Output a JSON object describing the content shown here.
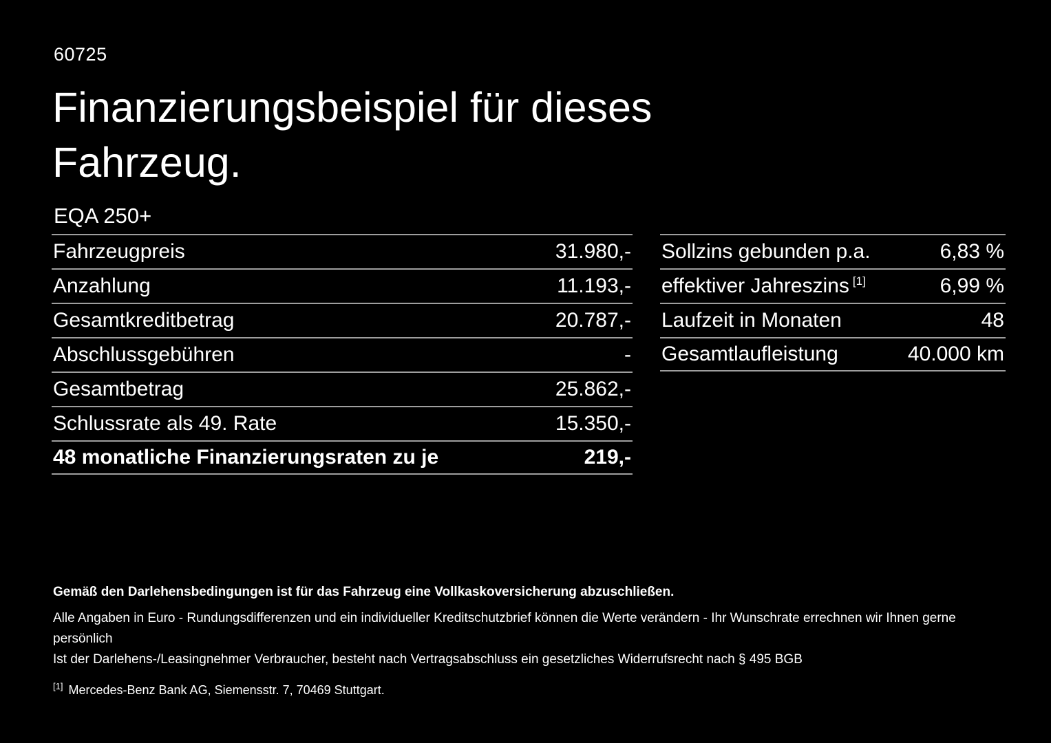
{
  "header": {
    "doc_id": "60725",
    "title_lines": [
      "Finanzierungsbeispiel für dieses",
      "Fahrzeug."
    ],
    "model": "EQA 250+"
  },
  "finance_table": {
    "rows": [
      {
        "label": "Fahrzeugpreis",
        "value": "31.980,-"
      },
      {
        "label": "Anzahlung",
        "value": "11.193,-"
      },
      {
        "label": "Gesamtkreditbetrag",
        "value": "20.787,-"
      },
      {
        "label": "Abschlussgebühren",
        "value": "-"
      },
      {
        "label": "Gesamtbetrag",
        "value": "25.862,-"
      },
      {
        "label": "Schlussrate als 49. Rate",
        "value": "15.350,-"
      },
      {
        "label": "48 monatliche Finanzierungsraten zu je",
        "value": "219,-"
      }
    ]
  },
  "conditions_table": {
    "rows": [
      {
        "label": "Sollzins gebunden p.a.",
        "value": "6,83 %"
      },
      {
        "label": "effektiver Jahreszins",
        "sup": "[1]",
        "value": "6,99 %"
      },
      {
        "label": "Laufzeit in Monaten",
        "value": "48"
      },
      {
        "label": "Gesamtlaufleistung",
        "value": "40.000 km"
      }
    ]
  },
  "footer": {
    "insurance_note": "Gemäß den Darlehensbedingungen ist für das Fahrzeug eine Vollkaskoversicherung abzuschließen.",
    "note_line1": "Alle Angaben in Euro - Rundungsdifferenzen und ein individueller Kreditschutzbrief können die Werte verändern - Ihr Wunschrate errechnen wir Ihnen gerne persönlich",
    "note_line2": "Ist der Darlehens-/Leasingnehmer Verbraucher, besteht nach Vertragsabschluss ein gesetzliches Widerrufsrecht nach § 495 BGB",
    "footnote_marker": "[1]",
    "footnote_text": "Mercedes-Benz Bank AG, Siemensstr. 7, 70469 Stuttgart."
  },
  "colors": {
    "background": "#000000",
    "text": "#ffffff",
    "divider": "#9e9e9e"
  }
}
